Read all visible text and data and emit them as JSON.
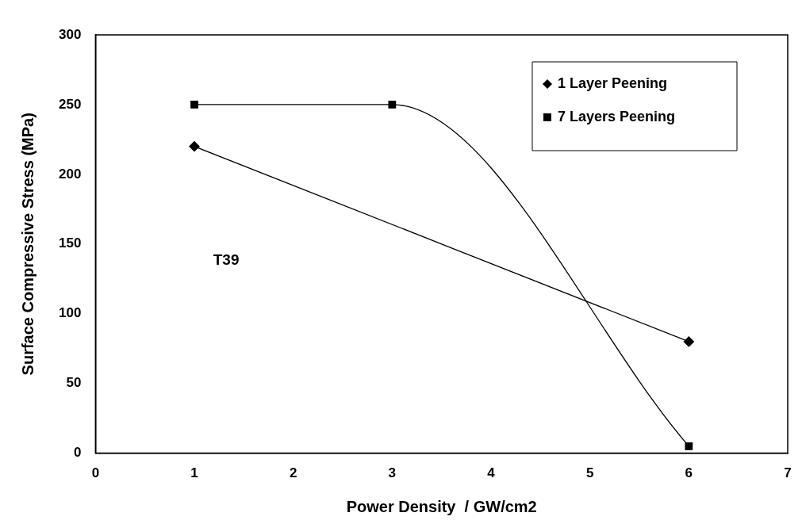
{
  "chart_data": {
    "type": "line",
    "xlabel": "Power Density  / GW/cm2",
    "ylabel": "Surface Compressive Stress (MPa)",
    "xlim": [
      0,
      7
    ],
    "xticks": [
      0,
      1,
      2,
      3,
      4,
      5,
      6,
      7
    ],
    "ylim": [
      0,
      300
    ],
    "yticks": [
      0,
      50,
      100,
      150,
      200,
      250,
      300
    ],
    "grid": false,
    "legend": "top right",
    "line_style": "solid",
    "annotations": [
      "T39"
    ],
    "series": [
      {
        "name": "1 Layer Peening",
        "color": "#000000",
        "marker": "diamond",
        "x": [
          1,
          6
        ],
        "values": [
          220,
          80
        ]
      },
      {
        "name": "7 Layers Peening",
        "color": "#000000",
        "marker": "square",
        "x": [
          1,
          3,
          6
        ],
        "values": [
          250,
          250,
          5
        ]
      }
    ]
  }
}
